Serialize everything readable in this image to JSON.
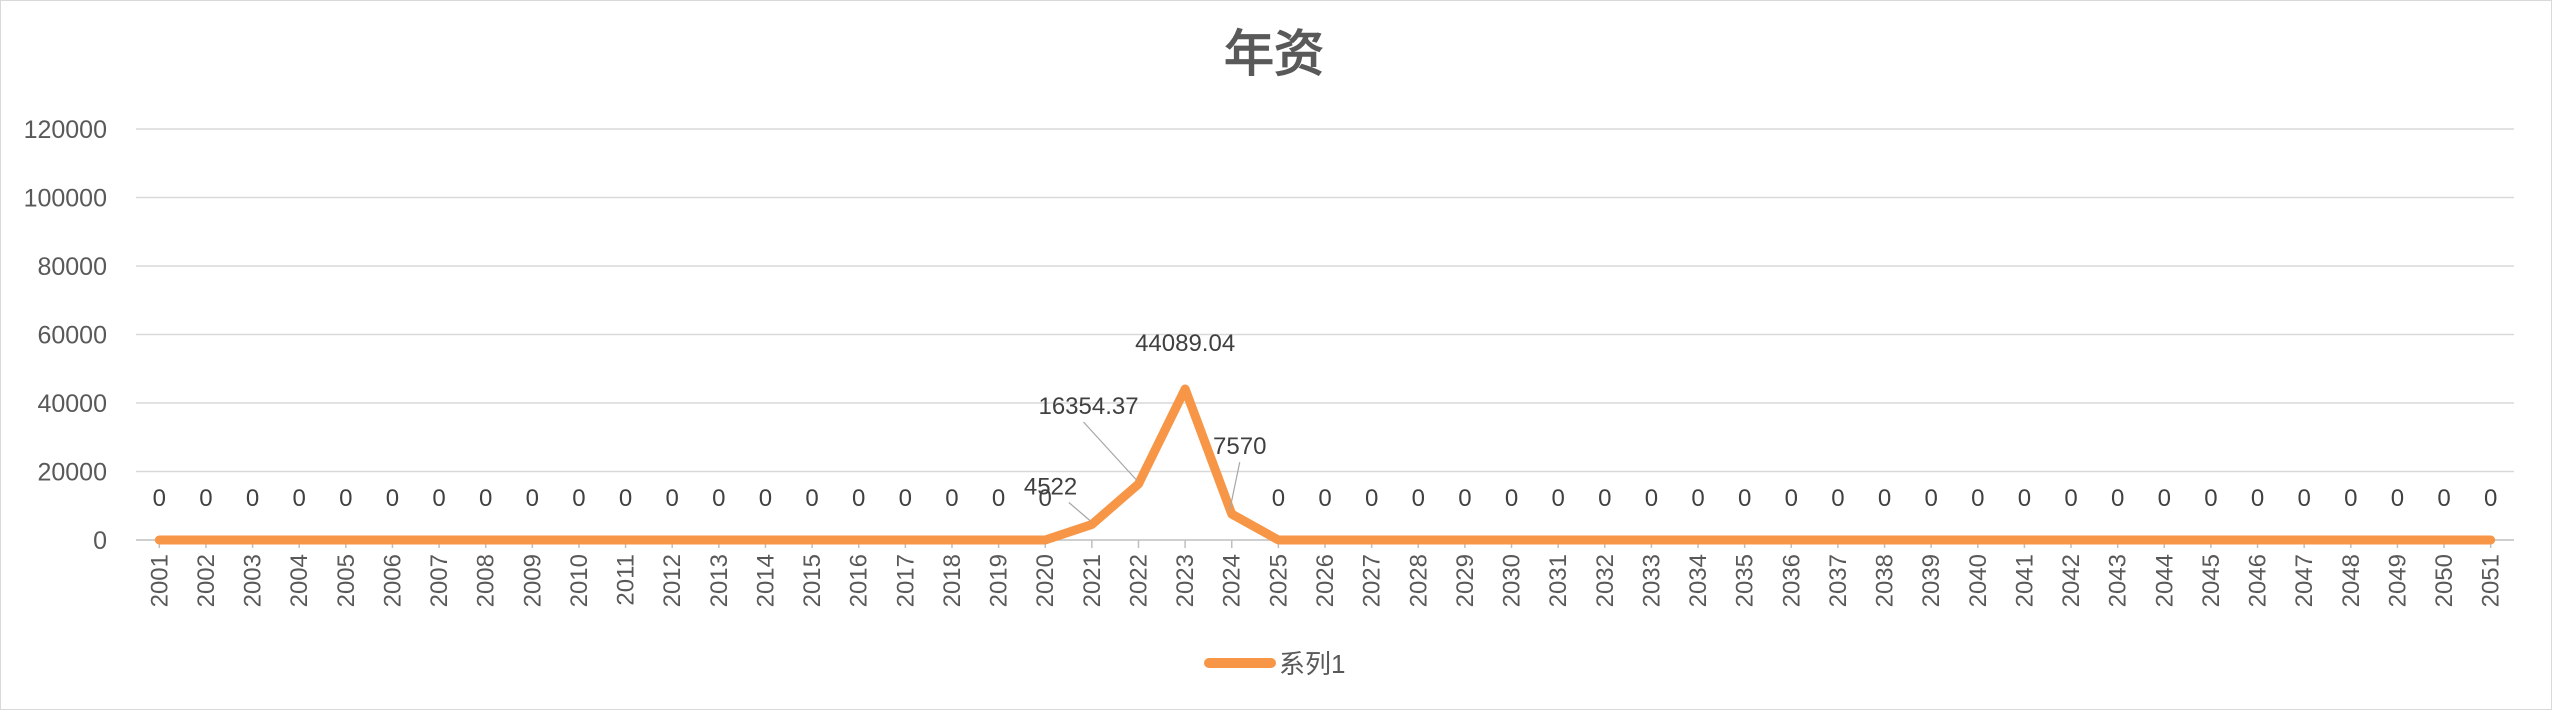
{
  "chart_data": {
    "type": "line",
    "title": "年资",
    "xlabel": "",
    "ylabel": "",
    "ylim": [
      0,
      120000
    ],
    "yticks": [
      "0",
      "20000",
      "40000",
      "60000",
      "80000",
      "100000",
      "120000"
    ],
    "grid": true,
    "legend_position": "bottom",
    "line_color": "#F79646",
    "categories": [
      "2001",
      "2002",
      "2003",
      "2004",
      "2005",
      "2006",
      "2007",
      "2008",
      "2009",
      "2010",
      "2011",
      "2012",
      "2013",
      "2014",
      "2015",
      "2016",
      "2017",
      "2018",
      "2019",
      "2020",
      "2021",
      "2022",
      "2023",
      "2024",
      "2025",
      "2026",
      "2027",
      "2028",
      "2029",
      "2030",
      "2031",
      "2032",
      "2033",
      "2034",
      "2035",
      "2036",
      "2037",
      "2038",
      "2039",
      "2040",
      "2041",
      "2042",
      "2043",
      "2044",
      "2045",
      "2046",
      "2047",
      "2048",
      "2049",
      "2050",
      "2051"
    ],
    "series": [
      {
        "name": "系列1",
        "values": [
          0,
          0,
          0,
          0,
          0,
          0,
          0,
          0,
          0,
          0,
          0,
          0,
          0,
          0,
          0,
          0,
          0,
          0,
          0,
          0,
          4522,
          16354.37,
          44089.04,
          7570,
          0,
          0,
          0,
          0,
          0,
          0,
          0,
          0,
          0,
          0,
          0,
          0,
          0,
          0,
          0,
          0,
          0,
          0,
          0,
          0,
          0,
          0,
          0,
          0,
          0,
          0,
          0
        ],
        "labels": [
          "0",
          "0",
          "0",
          "0",
          "0",
          "0",
          "0",
          "0",
          "0",
          "0",
          "0",
          "0",
          "0",
          "0",
          "0",
          "0",
          "0",
          "0",
          "0",
          "0",
          "4522",
          "16354.37",
          "44089.04",
          "7570",
          "0",
          "0",
          "0",
          "0",
          "0",
          "0",
          "0",
          "0",
          "0",
          "0",
          "0",
          "0",
          "0",
          "0",
          "0",
          "0",
          "0",
          "0",
          "0",
          "0",
          "0",
          "0",
          "0",
          "0",
          "0",
          "0",
          "0"
        ]
      }
    ]
  }
}
